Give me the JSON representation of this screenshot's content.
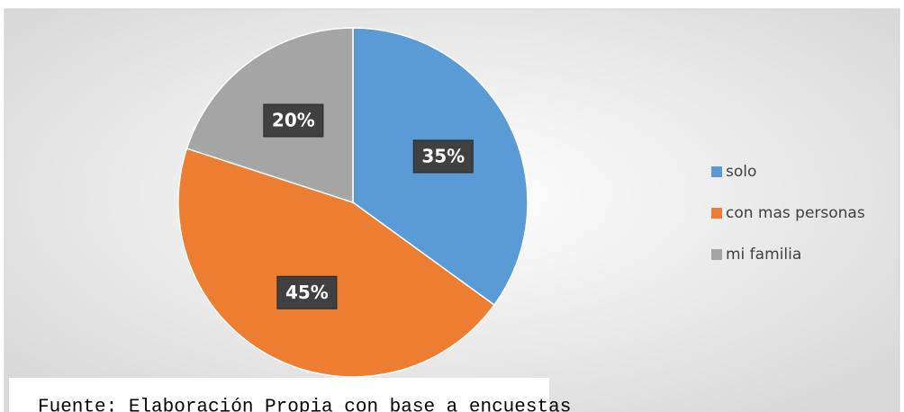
{
  "chart_data": {
    "type": "pie",
    "categories": [
      "solo",
      "con mas personas",
      "mi familia"
    ],
    "values": [
      35,
      45,
      20
    ],
    "value_labels": [
      "35%",
      "45%",
      "20%"
    ],
    "colors": [
      "#5b9bd5",
      "#ed7d31",
      "#a5a5a5"
    ],
    "legend": "right"
  },
  "caption": "Fuente: Elaboración Propia con base a encuestas"
}
